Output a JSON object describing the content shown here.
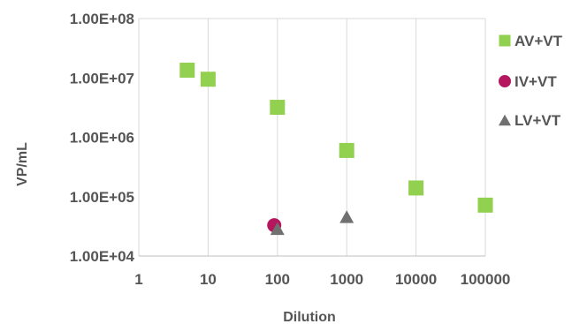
{
  "chart_data": {
    "type": "scatter",
    "xlabel": "Dilution",
    "ylabel": "VP/mL",
    "x_scale": "log",
    "y_scale": "log",
    "xlim": [
      1,
      100000
    ],
    "ylim": [
      10000,
      100000000
    ],
    "x_ticks": [
      {
        "value": 1,
        "label": "1"
      },
      {
        "value": 10,
        "label": "10"
      },
      {
        "value": 100,
        "label": "100"
      },
      {
        "value": 1000,
        "label": "1000"
      },
      {
        "value": 10000,
        "label": "10000"
      },
      {
        "value": 100000,
        "label": "100000"
      }
    ],
    "y_ticks": [
      {
        "value": 10000,
        "label": "1.00E+04"
      },
      {
        "value": 100000,
        "label": "1.00E+05"
      },
      {
        "value": 1000000,
        "label": "1.00E+06"
      },
      {
        "value": 10000000,
        "label": "1.00E+07"
      },
      {
        "value": 100000000,
        "label": "1.00E+08"
      }
    ],
    "grid": "vertical",
    "legend_position": "right",
    "series": [
      {
        "name": "AV+VT",
        "marker": "square",
        "color": "#92D050",
        "points": [
          {
            "x": 5,
            "y": 13500000
          },
          {
            "x": 10,
            "y": 9500000
          },
          {
            "x": 100,
            "y": 3200000
          },
          {
            "x": 1000,
            "y": 600000
          },
          {
            "x": 10000,
            "y": 140000
          },
          {
            "x": 100000,
            "y": 72000
          }
        ]
      },
      {
        "name": "IV+VT",
        "marker": "circle",
        "color": "#B5175F",
        "points": [
          {
            "x": 90,
            "y": 33000
          }
        ]
      },
      {
        "name": "LV+VT",
        "marker": "triangle",
        "color": "#707070",
        "points": [
          {
            "x": 100,
            "y": 29000
          },
          {
            "x": 1000,
            "y": 46000
          }
        ]
      }
    ]
  }
}
